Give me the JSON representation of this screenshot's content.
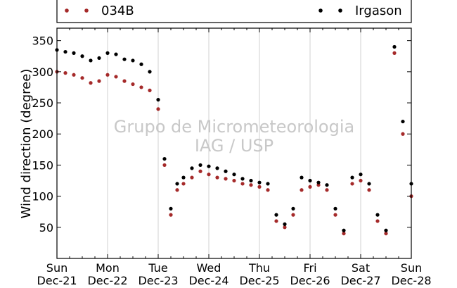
{
  "chart_data": {
    "type": "scatter",
    "title": "",
    "xlabel": "",
    "ylabel": "Wind direction (degree)",
    "xlim": [
      "2014-12-21",
      "2014-12-28"
    ],
    "ylim": [
      0,
      370
    ],
    "yticks": [
      50,
      100,
      150,
      200,
      250,
      300,
      350
    ],
    "xticks": [
      {
        "day": "Sun",
        "date": "Dec-21"
      },
      {
        "day": "Mon",
        "date": "Dec-22"
      },
      {
        "day": "Tue",
        "date": "Dec-23"
      },
      {
        "day": "Wed",
        "date": "Dec-24"
      },
      {
        "day": "Thu",
        "date": "Dec-25"
      },
      {
        "day": "Fri",
        "date": "Dec-26"
      },
      {
        "day": "Sat",
        "date": "Dec-27"
      },
      {
        "day": "Sun",
        "date": "Dec-28"
      }
    ],
    "grid": "vertical",
    "legend_position": "top",
    "series": [
      {
        "name": "034B",
        "color": "#a52a2a",
        "marker": "dot",
        "x": [
          "2014-12-21 00:00",
          "2014-12-21 04:00",
          "2014-12-21 08:00",
          "2014-12-21 12:00",
          "2014-12-21 16:00",
          "2014-12-21 20:00",
          "2014-12-22 00:00",
          "2014-12-22 04:00",
          "2014-12-22 08:00",
          "2014-12-22 12:00",
          "2014-12-22 16:00",
          "2014-12-22 20:00",
          "2014-12-23 00:00",
          "2014-12-23 03:00",
          "2014-12-23 06:00",
          "2014-12-23 09:00",
          "2014-12-23 12:00",
          "2014-12-23 16:00",
          "2014-12-23 20:00",
          "2014-12-24 00:00",
          "2014-12-24 04:00",
          "2014-12-24 08:00",
          "2014-12-24 12:00",
          "2014-12-24 16:00",
          "2014-12-24 20:00",
          "2014-12-25 00:00",
          "2014-12-25 04:00",
          "2014-12-25 08:00",
          "2014-12-25 12:00",
          "2014-12-25 16:00",
          "2014-12-25 20:00",
          "2014-12-26 00:00",
          "2014-12-26 04:00",
          "2014-12-26 08:00",
          "2014-12-26 12:00",
          "2014-12-26 16:00",
          "2014-12-26 20:00",
          "2014-12-27 00:00",
          "2014-12-27 04:00",
          "2014-12-27 08:00",
          "2014-12-27 12:00",
          "2014-12-27 16:00",
          "2014-12-27 20:00",
          "2014-12-28 00:00"
        ],
        "y": [
          300,
          298,
          295,
          290,
          282,
          285,
          295,
          292,
          285,
          280,
          275,
          270,
          240,
          150,
          70,
          110,
          120,
          130,
          140,
          135,
          130,
          128,
          125,
          120,
          118,
          115,
          110,
          60,
          50,
          70,
          110,
          115,
          118,
          110,
          70,
          40,
          120,
          125,
          110,
          60,
          40,
          330,
          200,
          100
        ]
      },
      {
        "name": "Irgason",
        "color": "#000000",
        "marker": "dot",
        "x": [
          "2014-12-21 00:00",
          "2014-12-21 04:00",
          "2014-12-21 08:00",
          "2014-12-21 12:00",
          "2014-12-21 16:00",
          "2014-12-21 20:00",
          "2014-12-22 00:00",
          "2014-12-22 04:00",
          "2014-12-22 08:00",
          "2014-12-22 12:00",
          "2014-12-22 16:00",
          "2014-12-22 20:00",
          "2014-12-23 00:00",
          "2014-12-23 03:00",
          "2014-12-23 06:00",
          "2014-12-23 09:00",
          "2014-12-23 12:00",
          "2014-12-23 16:00",
          "2014-12-23 20:00",
          "2014-12-24 00:00",
          "2014-12-24 04:00",
          "2014-12-24 08:00",
          "2014-12-24 12:00",
          "2014-12-24 16:00",
          "2014-12-24 20:00",
          "2014-12-25 00:00",
          "2014-12-25 04:00",
          "2014-12-25 08:00",
          "2014-12-25 12:00",
          "2014-12-25 16:00",
          "2014-12-25 20:00",
          "2014-12-26 00:00",
          "2014-12-26 04:00",
          "2014-12-26 08:00",
          "2014-12-26 12:00",
          "2014-12-26 16:00",
          "2014-12-26 20:00",
          "2014-12-27 00:00",
          "2014-12-27 04:00",
          "2014-12-27 08:00",
          "2014-12-27 12:00",
          "2014-12-27 16:00",
          "2014-12-27 20:00",
          "2014-12-28 00:00"
        ],
        "y": [
          335,
          332,
          330,
          325,
          318,
          322,
          330,
          328,
          320,
          318,
          312,
          300,
          255,
          160,
          80,
          120,
          130,
          145,
          150,
          148,
          145,
          140,
          135,
          128,
          125,
          122,
          120,
          70,
          55,
          80,
          130,
          125,
          122,
          118,
          80,
          45,
          130,
          135,
          120,
          70,
          45,
          340,
          220,
          120
        ]
      }
    ],
    "annotations": [
      "Grupo de Micrometeorologia",
      "IAG / USP"
    ]
  }
}
